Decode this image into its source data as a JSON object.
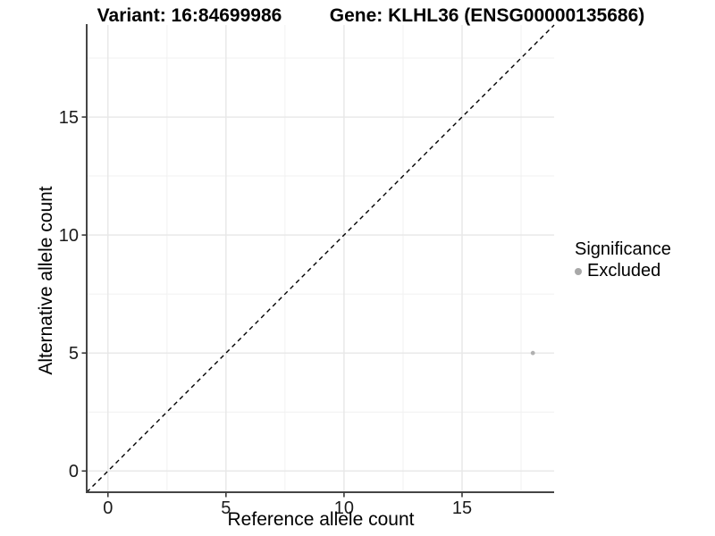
{
  "chart_data": {
    "type": "scatter",
    "title_left": "Variant: 16:84699986",
    "title_right": "Gene: KLHL36 (ENSG00000135686)",
    "xlabel": "Reference allele count",
    "ylabel": "Alternative allele count",
    "xlim": [
      -0.9,
      18.9
    ],
    "ylim": [
      -0.9,
      18.9
    ],
    "x_ticks": [
      0,
      5,
      10,
      15
    ],
    "y_ticks": [
      0,
      5,
      10,
      15
    ],
    "x_minor_gridlines": [
      2.5,
      7.5,
      12.5,
      17.5
    ],
    "y_minor_gridlines": [
      2.5,
      7.5,
      12.5,
      17.5
    ],
    "grid": "major-and-minor",
    "identity_line": {
      "slope": 1,
      "intercept": 0,
      "style": "dashed",
      "color": "#000000"
    },
    "series": [
      {
        "name": "Excluded",
        "color": "#b0b0b0",
        "point_radius": 2.4,
        "points": [
          {
            "x": 18,
            "y": 5
          }
        ]
      }
    ],
    "legend": {
      "title": "Significance",
      "position": "right",
      "entries": [
        {
          "label": "Excluded",
          "color": "#a8a8a8"
        }
      ]
    },
    "style_colors": {
      "background": "#ffffff",
      "gridline_major": "#e7e7e7",
      "gridline_minor": "#f1f1f1",
      "axis_line": "#454545",
      "tick_mark": "#3a3a3a",
      "tick_text": "#1a1a1a",
      "title_text": "#000000"
    }
  }
}
